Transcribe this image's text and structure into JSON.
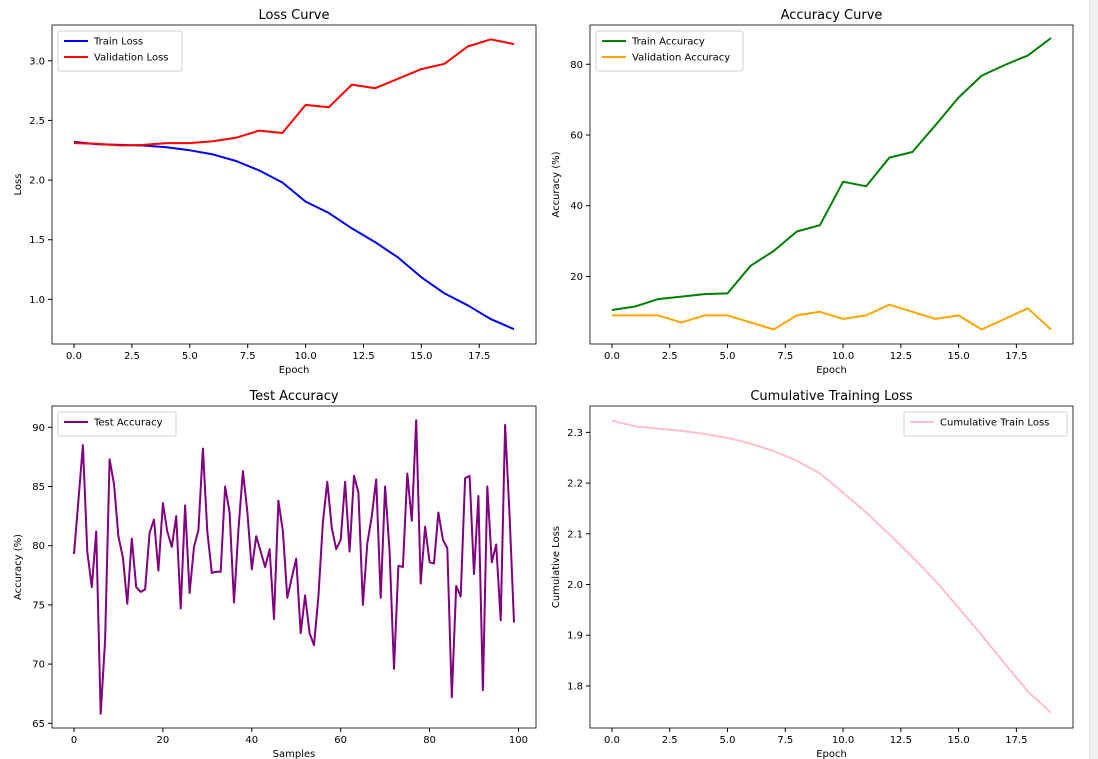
{
  "chart_data": [
    {
      "type": "line",
      "title": "Loss Curve",
      "xlabel": "Epoch",
      "ylabel": "Loss",
      "xlim": [
        -0.95,
        19.95
      ],
      "ylim": [
        0.626,
        3.3
      ],
      "xticks": [
        0,
        2.5,
        5,
        7.5,
        10,
        12.5,
        15,
        17.5
      ],
      "xticklabels": [
        "0.0",
        "2.5",
        "5.0",
        "7.5",
        "10.0",
        "12.5",
        "15.0",
        "17.5"
      ],
      "yticks": [
        1.0,
        1.5,
        2.0,
        2.5,
        3.0
      ],
      "yticklabels": [
        "1.0",
        "1.5",
        "2.0",
        "2.5",
        "3.0"
      ],
      "legend_loc": "upper left",
      "x": [
        0,
        1,
        2,
        3,
        4,
        5,
        6,
        7,
        8,
        9,
        10,
        11,
        12,
        13,
        14,
        15,
        16,
        17,
        18,
        19
      ],
      "series": [
        {
          "name": "Train Loss",
          "color": "#0000ff",
          "values": [
            2.32,
            2.3,
            2.295,
            2.29,
            2.275,
            2.25,
            2.215,
            2.16,
            2.08,
            1.98,
            1.82,
            1.725,
            1.595,
            1.48,
            1.35,
            1.185,
            1.05,
            0.95,
            0.835,
            0.75
          ]
        },
        {
          "name": "Validation Loss",
          "color": "#ff0000",
          "values": [
            2.31,
            2.305,
            2.29,
            2.295,
            2.31,
            2.31,
            2.325,
            2.355,
            2.415,
            2.395,
            2.63,
            2.61,
            2.8,
            2.77,
            2.85,
            2.93,
            2.975,
            3.12,
            3.18,
            3.14
          ]
        }
      ]
    },
    {
      "type": "line",
      "title": "Accuracy Curve",
      "xlabel": "Epoch",
      "ylabel": "Accuracy (%)",
      "xlim": [
        -0.95,
        19.95
      ],
      "ylim": [
        0.9,
        91.1
      ],
      "xticks": [
        0,
        2.5,
        5,
        7.5,
        10,
        12.5,
        15,
        17.5
      ],
      "xticklabels": [
        "0.0",
        "2.5",
        "5.0",
        "7.5",
        "10.0",
        "12.5",
        "15.0",
        "17.5"
      ],
      "yticks": [
        20,
        40,
        60,
        80
      ],
      "yticklabels": [
        "20",
        "40",
        "60",
        "80"
      ],
      "legend_loc": "upper left",
      "x": [
        0,
        1,
        2,
        3,
        4,
        5,
        6,
        7,
        8,
        9,
        10,
        11,
        12,
        13,
        14,
        15,
        16,
        17,
        18,
        19
      ],
      "series": [
        {
          "name": "Train Accuracy",
          "color": "#008000",
          "values": [
            10.5,
            11.5,
            13.6,
            14.3,
            15.0,
            15.2,
            23.0,
            27.2,
            32.7,
            34.5,
            46.8,
            45.5,
            53.6,
            55.2,
            62.8,
            70.6,
            76.8,
            79.8,
            82.5,
            87.4
          ]
        },
        {
          "name": "Validation Accuracy",
          "color": "#ffa500",
          "values": [
            9,
            9,
            9,
            7,
            9,
            9,
            7,
            5,
            9,
            10,
            8,
            9,
            12,
            10,
            8,
            9,
            5,
            8,
            11,
            5
          ]
        }
      ]
    },
    {
      "type": "line",
      "title": "Test Accuracy",
      "xlabel": "Samples",
      "ylabel": "Accuracy (%)",
      "xlim": [
        -4.95,
        103.95
      ],
      "ylim": [
        64.6,
        91.8
      ],
      "xticks": [
        0,
        20,
        40,
        60,
        80,
        100
      ],
      "xticklabels": [
        "0",
        "20",
        "40",
        "60",
        "80",
        "100"
      ],
      "yticks": [
        65,
        70,
        75,
        80,
        85,
        90
      ],
      "yticklabels": [
        "65",
        "70",
        "75",
        "80",
        "85",
        "90"
      ],
      "legend_loc": "upper left",
      "series": [
        {
          "name": "Test Accuracy",
          "color": "#800080",
          "values": [
            79.3,
            83.8,
            88.5,
            79.5,
            76.5,
            81.2,
            65.8,
            72,
            87.3,
            85.2,
            80.8,
            79,
            75.1,
            80.6,
            76.5,
            76.1,
            76.3,
            81.1,
            82.2,
            77.9,
            83.6,
            81.2,
            79.9,
            82.5,
            74.7,
            83.4,
            76,
            79.9,
            81.3,
            88.2,
            81.2,
            77.7,
            77.8,
            77.8,
            85,
            82.8,
            75.2,
            81.3,
            86.3,
            82.9,
            78,
            80.8,
            79.5,
            78.2,
            79.7,
            73.8,
            83.8,
            81.2,
            75.6,
            77.3,
            78.9,
            72.6,
            75.8,
            72.6,
            71.6,
            75.7,
            82,
            85.4,
            81.5,
            79.7,
            80.5,
            85.4,
            79.5,
            85.9,
            84.5,
            75,
            80.2,
            82.5,
            85.6,
            75.6,
            85,
            79.5,
            69.6,
            78.3,
            78.2,
            86.1,
            82.1,
            90.6,
            76.8,
            81.6,
            78.6,
            78.5,
            82.8,
            80.5,
            79.8,
            67.2,
            76.6,
            75.7,
            85.7,
            85.9,
            77.6,
            84.2,
            67.8,
            85,
            78.6,
            80.1,
            73.7,
            90.2,
            82.5,
            73.5
          ]
        }
      ]
    },
    {
      "type": "line",
      "title": "Cumulative Training Loss",
      "xlabel": "Epoch",
      "ylabel": "Cumulative Loss",
      "xlim": [
        -0.95,
        19.95
      ],
      "ylim": [
        1.717,
        2.352
      ],
      "xticks": [
        0,
        2.5,
        5,
        7.5,
        10,
        12.5,
        15,
        17.5
      ],
      "xticklabels": [
        "0.0",
        "2.5",
        "5.0",
        "7.5",
        "10.0",
        "12.5",
        "15.0",
        "17.5"
      ],
      "yticks": [
        1.8,
        1.9,
        2.0,
        2.1,
        2.2,
        2.3
      ],
      "yticklabels": [
        "1.8",
        "1.9",
        "2.0",
        "2.1",
        "2.2",
        "2.3"
      ],
      "legend_loc": "upper right",
      "x": [
        0,
        1,
        2,
        3,
        4,
        5,
        6,
        7,
        8,
        9,
        10,
        11,
        12,
        13,
        14,
        15,
        16,
        17,
        18,
        19
      ],
      "series": [
        {
          "name": "Cumulative Train Loss",
          "color": "#ffc0cb",
          "values": [
            2.323,
            2.312,
            2.307,
            2.303,
            2.297,
            2.289,
            2.278,
            2.263,
            2.244,
            2.219,
            2.181,
            2.142,
            2.099,
            2.054,
            2.007,
            1.954,
            1.9,
            1.844,
            1.789,
            1.747
          ]
        }
      ]
    }
  ]
}
